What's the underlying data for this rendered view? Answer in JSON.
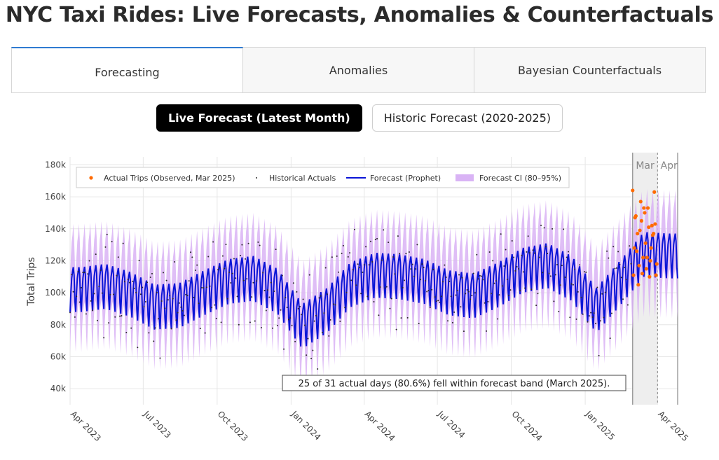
{
  "app": {
    "title": "NYC Taxi Rides: Live Forecasts, Anomalies & Counterfactuals"
  },
  "tabs": [
    {
      "label": "Forecasting",
      "active": true
    },
    {
      "label": "Anomalies",
      "active": false
    },
    {
      "label": "Bayesian Counterfactuals",
      "active": false
    }
  ],
  "buttons": {
    "live": "Live Forecast (Latest Month)",
    "historic": "Historic Forecast (2020-2025)"
  },
  "colors": {
    "forecast_line": "#0a14d6",
    "ci_band": "#d9b3f5",
    "actual_observed": "#ff6a00",
    "historical_actuals": "#2b2b2b",
    "active_tab_accent": "#2f7bd1"
  },
  "chart_data": {
    "type": "line",
    "ylabel": "Total Trips",
    "ylim": [
      30000,
      185000
    ],
    "y_ticks": [
      "40k",
      "60k",
      "80k",
      "100k",
      "120k",
      "140k",
      "160k",
      "180k"
    ],
    "y_tick_values": [
      40000,
      60000,
      80000,
      100000,
      120000,
      140000,
      160000,
      180000
    ],
    "x_range": [
      "2023-04-01",
      "2025-04-26"
    ],
    "x_ticks": [
      "Apr 2023",
      "Jul 2023",
      "Oct 2023",
      "Jan 2024",
      "Apr 2024",
      "Jul 2024",
      "Oct 2024",
      "Jan 2025",
      "Apr 2025"
    ],
    "x_tick_dates": [
      "2023-04-01",
      "2023-07-01",
      "2023-10-01",
      "2024-01-01",
      "2024-04-01",
      "2024-07-01",
      "2024-10-01",
      "2025-01-01",
      "2025-04-01"
    ],
    "grid": true,
    "legend_placement": "top-left",
    "legend": [
      {
        "name": "Actual Trips (Observed, Mar 2025)",
        "symbol": "dot-large"
      },
      {
        "name": "Historical Actuals",
        "symbol": "dot-small"
      },
      {
        "name": "Forecast (Prophet)",
        "symbol": "line"
      },
      {
        "name": "Forecast CI (80–95%)",
        "symbol": "band"
      }
    ],
    "shaded_regions": [
      {
        "label": "Mar",
        "start": "2025-03-01",
        "end": "2025-03-31"
      },
      {
        "label": "Apr",
        "start": "2025-04-01",
        "end": "2025-04-26"
      }
    ],
    "forecast_monthly_level": {
      "months": [
        "2023-04",
        "2023-05",
        "2023-06",
        "2023-07",
        "2023-08",
        "2023-09",
        "2023-10",
        "2023-11",
        "2023-12",
        "2024-01",
        "2024-02",
        "2024-03",
        "2024-04",
        "2024-05",
        "2024-06",
        "2024-07",
        "2024-08",
        "2024-09",
        "2024-10",
        "2024-11",
        "2024-12",
        "2025-01",
        "2025-02",
        "2025-03",
        "2025-04"
      ],
      "values": [
        103000,
        105000,
        100000,
        92000,
        93000,
        101000,
        108000,
        110000,
        102000,
        80000,
        90000,
        106000,
        112000,
        111000,
        108000,
        101000,
        99000,
        106000,
        115000,
        118000,
        110000,
        90000,
        108000,
        125000,
        124000
      ]
    },
    "observed_march_2025": {
      "days": [
        1,
        2,
        3,
        4,
        5,
        6,
        7,
        8,
        9,
        10,
        11,
        12,
        13,
        14,
        15,
        16,
        17,
        18,
        19,
        20,
        21,
        22,
        23,
        24,
        25,
        26,
        27,
        28,
        29,
        30,
        31
      ],
      "values": [
        164000,
        111000,
        128000,
        147000,
        148000,
        126000,
        137000,
        105000,
        117000,
        139000,
        157000,
        145000,
        112000,
        122000,
        153000,
        150000,
        131000,
        115000,
        122000,
        153000,
        141000,
        110000,
        120000,
        128000,
        142000,
        136000,
        137000,
        163000,
        143000,
        111000,
        118000
      ]
    },
    "annotation": "25 of 31 actual days (80.6%) fell within forecast band (March 2025)."
  }
}
